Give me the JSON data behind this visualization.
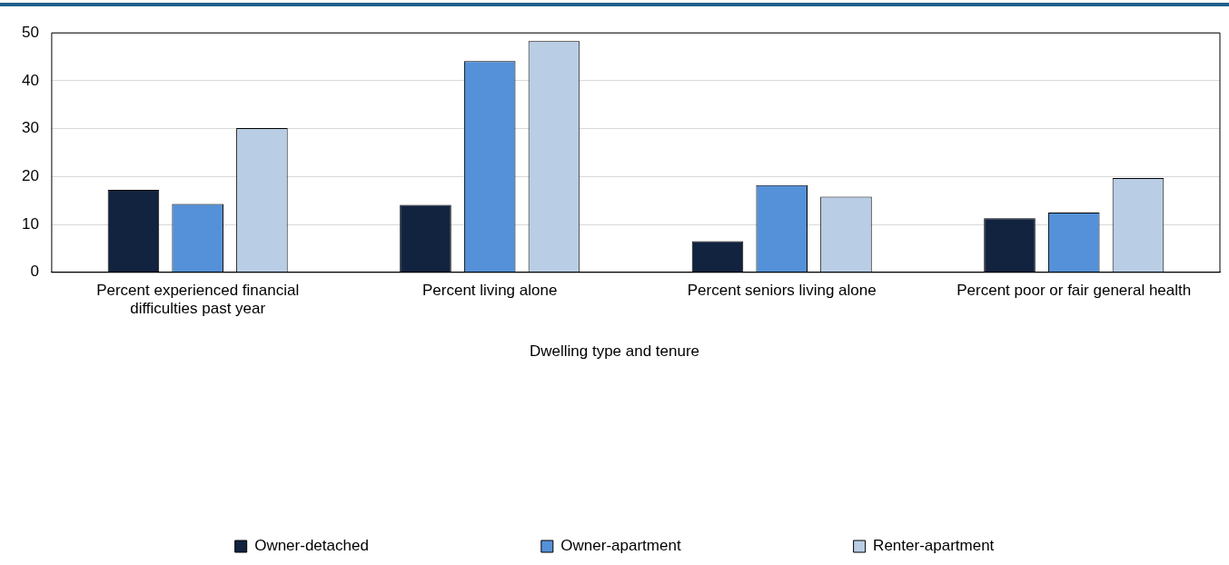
{
  "chart_data": {
    "type": "bar",
    "categories": [
      "Percent experienced financial difficulties past year",
      "Percent living alone",
      "Percent seniors living alone",
      "Percent poor or fair general health"
    ],
    "series": [
      {
        "name": "Owner-detached",
        "color": "#12233f",
        "values": [
          17.2,
          14.1,
          6.5,
          11.3
        ]
      },
      {
        "name": "Owner-apartment",
        "color": "#5591d8",
        "values": [
          14.3,
          44.1,
          18.2,
          12.5
        ]
      },
      {
        "name": "Renter-apartment",
        "color": "#b9cde5",
        "values": [
          30.1,
          48.3,
          15.8,
          19.7
        ]
      }
    ],
    "ylim": [
      0,
      50
    ],
    "yticks": [
      0,
      10,
      20,
      30,
      40,
      50
    ],
    "grid": "y",
    "legend": "bottom",
    "legend_title": "Dwelling type and tenure"
  }
}
